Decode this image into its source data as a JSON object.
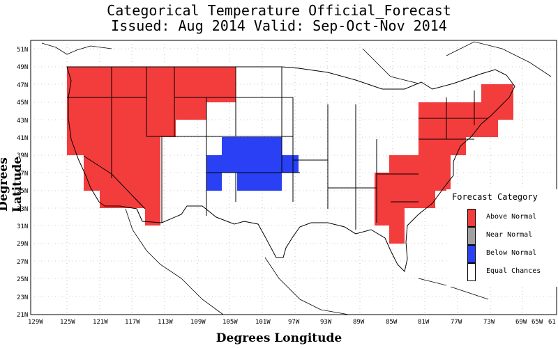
{
  "title_line1": "Categorical Temperature Official_Forecast",
  "title_line2": "Issued: Aug 2014 Valid: Sep-Oct-Nov 2014",
  "axes": {
    "x_title": "Degrees Longitude",
    "y_title": "Degrees Latitude",
    "x_ticks": [
      "129W",
      "125W",
      "121W",
      "117W",
      "113W",
      "109W",
      "105W",
      "101W",
      "97W",
      "93W",
      "89W",
      "85W",
      "81W",
      "77W",
      "73W",
      "69W",
      "65W",
      "61"
    ],
    "y_ticks": [
      "21N",
      "23N",
      "25N",
      "27N",
      "29N",
      "31N",
      "33N",
      "35N",
      "37N",
      "39N",
      "41N",
      "43N",
      "45N",
      "47N",
      "49N",
      "51N"
    ]
  },
  "legend": {
    "title": "Forecast Category",
    "items": [
      {
        "label": "Above Normal",
        "color": "#f33c3c"
      },
      {
        "label": "Near Normal",
        "color": "#a0a0a0"
      },
      {
        "label": "Below Normal",
        "color": "#2940f5"
      },
      {
        "label": "Equal Chances",
        "color": "#ffffff"
      }
    ]
  },
  "colors": {
    "above": "#f33c3c",
    "below": "#2940f5"
  }
}
